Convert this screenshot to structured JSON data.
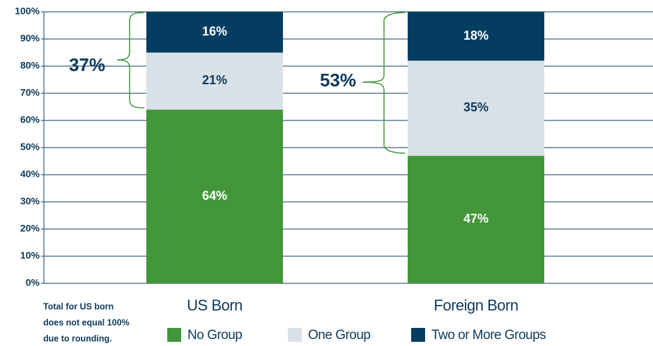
{
  "chart_data": {
    "type": "stacked_bar",
    "categories": [
      "US Born",
      "Foreign Born"
    ],
    "series": [
      {
        "name": "No Group",
        "color": "#43963a",
        "values": [
          64,
          47
        ],
        "value_labels": [
          "64%",
          "47%"
        ]
      },
      {
        "name": "One Group",
        "color": "#d9e1e8",
        "values": [
          21,
          35
        ],
        "value_labels": [
          "21%",
          "35%"
        ]
      },
      {
        "name": "Two or More Groups",
        "color": "#053d61",
        "values": [
          16,
          18
        ],
        "value_labels": [
          "16%",
          "18%"
        ]
      }
    ],
    "ylim": [
      0,
      100
    ],
    "yticks": [
      {
        "value": 0,
        "label": "0%"
      },
      {
        "value": 10,
        "label": "10%"
      },
      {
        "value": 20,
        "label": "20%"
      },
      {
        "value": 30,
        "label": "30%"
      },
      {
        "value": 40,
        "label": "40%"
      },
      {
        "value": 50,
        "label": "50%"
      },
      {
        "value": 60,
        "label": "60%"
      },
      {
        "value": 70,
        "label": "70%"
      },
      {
        "value": 80,
        "label": "80%"
      },
      {
        "value": 90,
        "label": "90%"
      },
      {
        "value": 100,
        "label": "100%"
      }
    ],
    "grid": true,
    "legend": "bottom",
    "annotations": [
      {
        "text": "37%"
      },
      {
        "text": "53%"
      }
    ],
    "note": [
      "Total for US born",
      "does not equal 100%",
      "due to rounding."
    ]
  }
}
